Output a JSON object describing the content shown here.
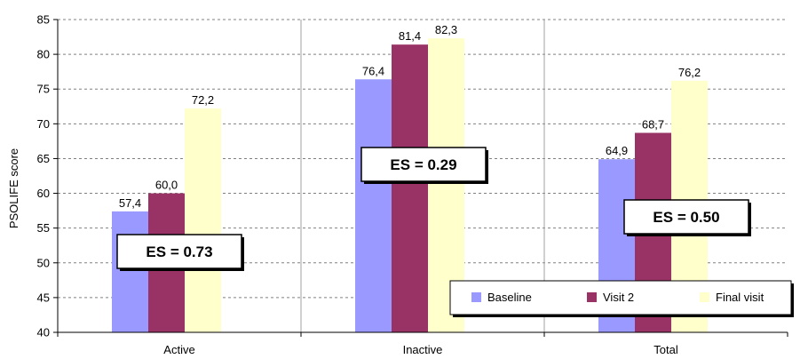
{
  "chart_data": {
    "type": "bar",
    "categories": [
      "Active",
      "Inactive",
      "Total"
    ],
    "series": [
      {
        "name": "Baseline",
        "values": [
          57.4,
          76.4,
          64.9
        ],
        "labels": [
          "57,4",
          "76,4",
          "64,9"
        ],
        "color": "#9999ff"
      },
      {
        "name": "Visit 2",
        "values": [
          60.0,
          81.4,
          68.7
        ],
        "labels": [
          "60,0",
          "81,4",
          "68,7"
        ],
        "color": "#993366"
      },
      {
        "name": "Final visit",
        "values": [
          72.2,
          82.3,
          76.2
        ],
        "labels": [
          "72,2",
          "82,3",
          "76,2"
        ],
        "color": "#ffffcc"
      }
    ],
    "ylabel": "PSOLIFE score",
    "ylim": [
      40,
      85
    ],
    "yticks": [
      40,
      45,
      50,
      55,
      60,
      65,
      70,
      75,
      80,
      85
    ],
    "grid": "dashed horizontal",
    "legend_position": "bottom-right",
    "annotations": [
      "ES = 0.73",
      "ES = 0.29",
      "ES = 0.50"
    ]
  }
}
